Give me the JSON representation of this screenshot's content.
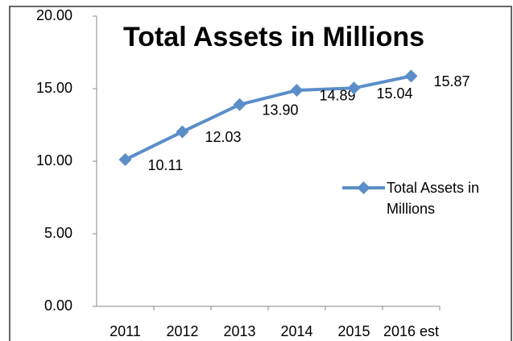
{
  "chart_data": {
    "type": "line",
    "title": "Total Assets in Millions",
    "categories": [
      "2011",
      "2012",
      "2013",
      "2014",
      "2015",
      "2016 est"
    ],
    "series": [
      {
        "name": "Total Assets in Millions",
        "color": "#5b8ec8",
        "values": [
          10.11,
          12.03,
          13.9,
          14.89,
          15.04,
          15.87
        ],
        "value_labels": [
          "10.11",
          "12.03",
          "13.90",
          "14.89",
          "15.04",
          "15.87"
        ]
      }
    ],
    "ylim": [
      0,
      20
    ],
    "yticks": [
      {
        "value": 0,
        "label": "0.00"
      },
      {
        "value": 5,
        "label": "5.00"
      },
      {
        "value": 10,
        "label": "10.00"
      },
      {
        "value": 15,
        "label": "15.00"
      },
      {
        "value": 20,
        "label": "20.00"
      }
    ],
    "grid": false,
    "legend": "right"
  }
}
